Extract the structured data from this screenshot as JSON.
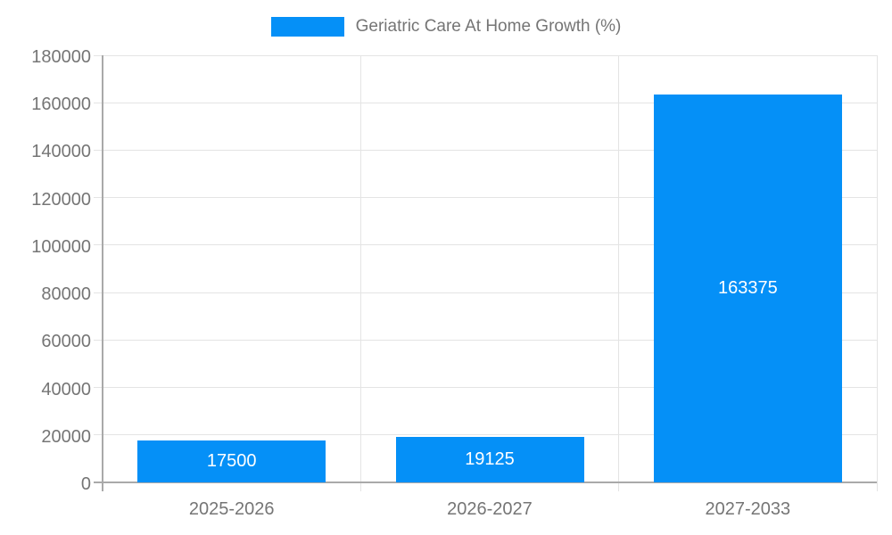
{
  "chart_data": {
    "type": "bar",
    "title": "",
    "legend": "Geriatric Care At Home Growth (%)",
    "legend_position": "top",
    "categories": [
      "2025-2026",
      "2026-2027",
      "2027-2033"
    ],
    "values": [
      17500,
      19125,
      163375
    ],
    "bar_labels": [
      "17500",
      "19125",
      "163375"
    ],
    "xlabel": "",
    "ylabel": "",
    "ylim": [
      0,
      180000
    ],
    "ytick_step": 20000,
    "ytick_labels": [
      "0",
      "20000",
      "40000",
      "60000",
      "80000",
      "100000",
      "120000",
      "140000",
      "160000",
      "180000"
    ],
    "grid": true,
    "colors": {
      "bar": "#0590f7",
      "bar_label": "#ffffff",
      "grid": "#e4e4e4",
      "axis": "#a9a9a9",
      "text": "#757575",
      "background": "#ffffff"
    }
  }
}
